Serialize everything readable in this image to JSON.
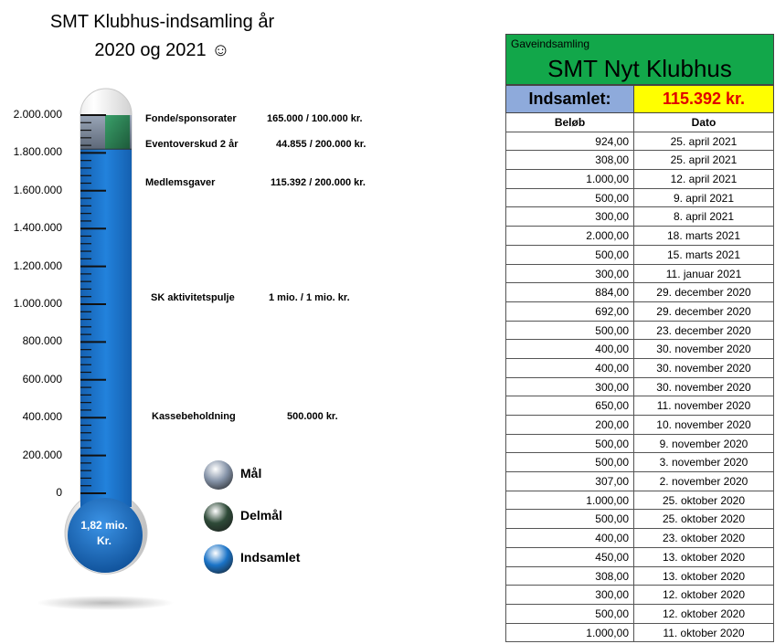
{
  "chart_data": {
    "type": "thermometer",
    "title_line1": "SMT Klubhus-indsamling år",
    "title_line2": "2020 og 2021 ☺",
    "ylim": [
      0,
      2000000
    ],
    "y_ticks": [
      {
        "value": 0,
        "label": "0"
      },
      {
        "value": 200000,
        "label": "200.000"
      },
      {
        "value": 400000,
        "label": "400.000"
      },
      {
        "value": 600000,
        "label": "600.000"
      },
      {
        "value": 800000,
        "label": "800.000"
      },
      {
        "value": 1000000,
        "label": "1.000.000"
      },
      {
        "value": 1200000,
        "label": "1.200.000"
      },
      {
        "value": 1400000,
        "label": "1.400.000"
      },
      {
        "value": 1600000,
        "label": "1.600.000"
      },
      {
        "value": 1800000,
        "label": "1.800.000"
      },
      {
        "value": 2000000,
        "label": "2.000.000"
      }
    ],
    "goal": 2000000,
    "subgoal": 1820000,
    "collected": 1820000,
    "bulb_label_line1": "1,82 mio.",
    "bulb_label_line2": "Kr.",
    "annotations": [
      {
        "label": "Fonde/sponsorater",
        "value_text": "165.000 / 100.000 kr.",
        "y": 1975000
      },
      {
        "label": "Eventoverskud 2 år",
        "value_text": "44.855 / 200.000 kr.",
        "y": 1840000
      },
      {
        "label": "Medlemsgaver",
        "value_text": "115.392 / 200.000 kr.",
        "y": 1640000
      },
      {
        "label": "SK aktivitetspulje",
        "value_text": "1 mio. / 1 mio. kr.",
        "y": 1030000
      },
      {
        "label": "Kassebeholdning",
        "value_text": "500.000 kr.",
        "y": 400000
      }
    ],
    "legend": [
      {
        "name": "Mål",
        "color": "#8593a8"
      },
      {
        "name": "Delmål",
        "color": "#2e4a38"
      },
      {
        "name": "Indsamlet",
        "color": "#1a73c7"
      }
    ],
    "colors": {
      "tube_fill": "#1a73c7",
      "goal": "#8593a8",
      "subgoal_green": "#2e8b57"
    }
  },
  "table": {
    "header_small": "Gaveindsamling",
    "header_big": "SMT Nyt Klubhus",
    "collected_label": "Indsamlet:",
    "collected_value": "115.392 kr.",
    "columns": [
      "Beløb",
      "Dato"
    ],
    "rows": [
      {
        "amount": "924,00",
        "date": "25. april 2021"
      },
      {
        "amount": "308,00",
        "date": "25. april 2021"
      },
      {
        "amount": "1.000,00",
        "date": "12. april 2021"
      },
      {
        "amount": "500,00",
        "date": "9. april 2021"
      },
      {
        "amount": "300,00",
        "date": "8. april 2021"
      },
      {
        "amount": "2.000,00",
        "date": "18. marts 2021"
      },
      {
        "amount": "500,00",
        "date": "15. marts 2021"
      },
      {
        "amount": "300,00",
        "date": "11. januar 2021"
      },
      {
        "amount": "884,00",
        "date": "29. december 2020"
      },
      {
        "amount": "692,00",
        "date": "29. december 2020"
      },
      {
        "amount": "500,00",
        "date": "23. december 2020"
      },
      {
        "amount": "400,00",
        "date": "30. november 2020"
      },
      {
        "amount": "400,00",
        "date": "30. november 2020"
      },
      {
        "amount": "300,00",
        "date": "30. november 2020"
      },
      {
        "amount": "650,00",
        "date": "11. november 2020"
      },
      {
        "amount": "200,00",
        "date": "10. november 2020"
      },
      {
        "amount": "500,00",
        "date": "9. november 2020"
      },
      {
        "amount": "500,00",
        "date": "3. november 2020"
      },
      {
        "amount": "307,00",
        "date": "2. november 2020"
      },
      {
        "amount": "1.000,00",
        "date": "25. oktober 2020"
      },
      {
        "amount": "500,00",
        "date": "25. oktober 2020"
      },
      {
        "amount": "400,00",
        "date": "23. oktober 2020"
      },
      {
        "amount": "450,00",
        "date": "13. oktober 2020"
      },
      {
        "amount": "308,00",
        "date": "13. oktober 2020"
      },
      {
        "amount": "300,00",
        "date": "12. oktober 2020"
      },
      {
        "amount": "500,00",
        "date": "12. oktober 2020"
      },
      {
        "amount": "1.000,00",
        "date": "11. oktober 2020"
      }
    ]
  }
}
